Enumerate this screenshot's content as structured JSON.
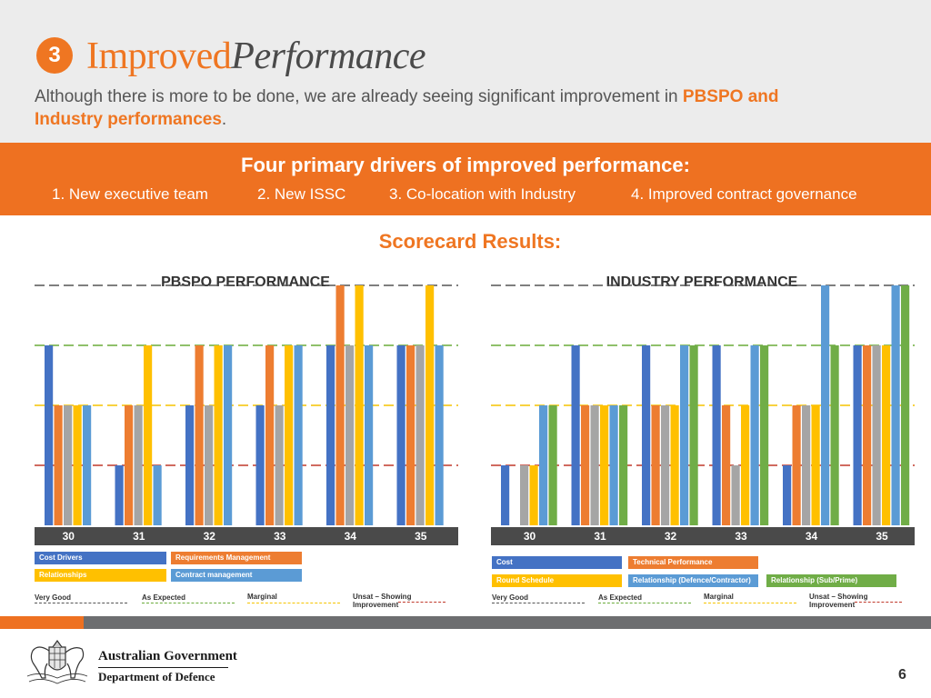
{
  "header": {
    "step_number": "3",
    "title_part1": "Improved",
    "title_part2": "Performance",
    "subtitle_text": "Although there is more to be done, we are already seeing significant improvement in ",
    "subtitle_highlight": "PBSPO and Industry performances",
    "subtitle_end": "."
  },
  "drivers": {
    "title": "Four primary drivers of improved performance:",
    "items": [
      "1. New executive team",
      "2. New ISSC",
      "3. Co-location with Industry",
      "4. Improved contract governance"
    ]
  },
  "scorecard_title": "Scorecard Results:",
  "scale_colors": {
    "very_good": "#555555",
    "as_expected": "#6aab3a",
    "marginal": "#f5c400",
    "unsat": "#c0392b"
  },
  "chart_data": [
    {
      "type": "bar",
      "title": "PBSPO PERFORMANCE",
      "categories": [
        "30",
        "31",
        "32",
        "33",
        "34",
        "35"
      ],
      "ylim": [
        0,
        4
      ],
      "reference_lines": [
        {
          "label": "Very Good",
          "value": 4
        },
        {
          "label": "As Expected",
          "value": 3
        },
        {
          "label": "Marginal",
          "value": 2
        },
        {
          "label": "Unsat – Showing Improvement",
          "value": 1
        }
      ],
      "series": [
        {
          "name": "Cost Drivers",
          "color": "#4472c4",
          "values": [
            3,
            1,
            2,
            2,
            3,
            3
          ]
        },
        {
          "name": "Requirements Management",
          "color": "#ed7d31",
          "values": [
            2,
            2,
            3,
            3,
            4,
            3
          ]
        },
        {
          "name": "Grey",
          "color": "#a5a5a5",
          "values": [
            2,
            2,
            2,
            2,
            3,
            3
          ]
        },
        {
          "name": "Relationships",
          "color": "#ffc000",
          "values": [
            2,
            3,
            3,
            3,
            4,
            4
          ]
        },
        {
          "name": "Contract management",
          "color": "#5b9bd5",
          "values": [
            2,
            1,
            3,
            3,
            3,
            3
          ]
        }
      ]
    },
    {
      "type": "bar",
      "title": "INDUSTRY PERFORMANCE",
      "categories": [
        "30",
        "31",
        "32",
        "33",
        "34",
        "35"
      ],
      "ylim": [
        0,
        4
      ],
      "reference_lines": [
        {
          "label": "Very Good",
          "value": 4
        },
        {
          "label": "As Expected",
          "value": 3
        },
        {
          "label": "Marginal",
          "value": 2
        },
        {
          "label": "Unsat – Showing Improvement",
          "value": 1
        }
      ],
      "series": [
        {
          "name": "Cost",
          "color": "#4472c4",
          "values": [
            1,
            3,
            3,
            3,
            1,
            3
          ]
        },
        {
          "name": "Technical Performance",
          "color": "#ed7d31",
          "values": [
            0,
            2,
            2,
            2,
            2,
            3
          ]
        },
        {
          "name": "Grey",
          "color": "#a5a5a5",
          "values": [
            1,
            2,
            2,
            1,
            2,
            3
          ]
        },
        {
          "name": "Round Schedule",
          "color": "#ffc000",
          "values": [
            1,
            2,
            2,
            2,
            2,
            3
          ]
        },
        {
          "name": "Relationship (Defence/Contractor)",
          "color": "#5b9bd5",
          "values": [
            2,
            2,
            3,
            3,
            4,
            4
          ]
        },
        {
          "name": "Relationship (Sub/Prime)",
          "color": "#70ad47",
          "values": [
            2,
            2,
            3,
            3,
            3,
            4
          ]
        }
      ]
    }
  ],
  "legends": {
    "left": {
      "boxes": [
        "Cost Drivers",
        "Requirements Management",
        "Relationships",
        "Contract management"
      ],
      "scale": [
        "Very Good",
        "As Expected",
        "Marginal",
        "Unsat – Showing Improvement"
      ]
    },
    "right": {
      "boxes": [
        "Cost",
        "Technical Performance",
        "Round Schedule",
        "Relationship (Defence/Contractor)",
        "Relationship (Sub/Prime)"
      ],
      "scale": [
        "Very Good",
        "As Expected",
        "Marginal",
        "Unsat – Showing Improvement"
      ]
    }
  },
  "footer": {
    "logo_text_line1": "Australian Government",
    "logo_text_line2": "Department of Defence",
    "crest_icon": "commonwealth-coat-of-arms",
    "page_number": "6"
  }
}
